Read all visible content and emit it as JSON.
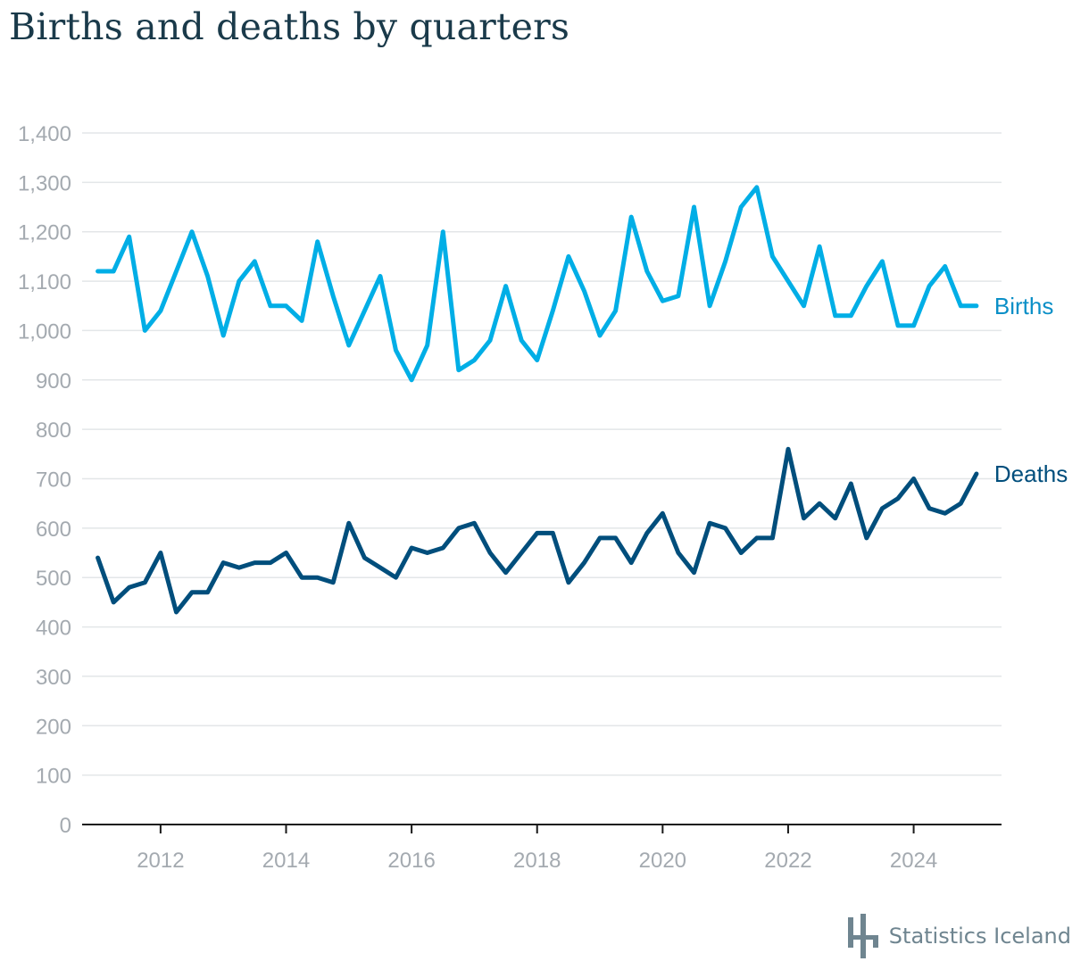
{
  "title": "Births and deaths by quarters",
  "footer": {
    "brand": "Statistics Iceland",
    "logo_icon": "statistics-iceland-logo-icon"
  },
  "colors": {
    "births": "#00aee6",
    "deaths": "#004e7c",
    "grid": "#e3e6e8",
    "axis": "#1a1a1a",
    "tick": "#a4aab0",
    "title": "#1a3a4a"
  },
  "chart_data": {
    "type": "line",
    "title": "Births and deaths by quarters",
    "xlabel": "",
    "ylabel": "",
    "ylim": [
      0,
      1400
    ],
    "yticks": [
      0,
      100,
      200,
      300,
      400,
      500,
      600,
      700,
      800,
      900,
      1000,
      1100,
      1200,
      1300,
      1400
    ],
    "ytick_labels": [
      "0",
      "100",
      "200",
      "300",
      "400",
      "500",
      "600",
      "700",
      "800",
      "900",
      "1,000",
      "1,100",
      "1,200",
      "1,300",
      "1,400"
    ],
    "xlim": [
      2010.75,
      2025.4
    ],
    "xticks": [
      2012,
      2014,
      2016,
      2018,
      2020,
      2022,
      2024
    ],
    "xtick_labels": [
      "2012",
      "2014",
      "2016",
      "2018",
      "2020",
      "2022",
      "2024"
    ],
    "x": [
      2011.0,
      2011.25,
      2011.5,
      2011.75,
      2012.0,
      2012.25,
      2012.5,
      2012.75,
      2013.0,
      2013.25,
      2013.5,
      2013.75,
      2014.0,
      2014.25,
      2014.5,
      2014.75,
      2015.0,
      2015.25,
      2015.5,
      2015.75,
      2016.0,
      2016.25,
      2016.5,
      2016.75,
      2017.0,
      2017.25,
      2017.5,
      2017.75,
      2018.0,
      2018.25,
      2018.5,
      2018.75,
      2019.0,
      2019.25,
      2019.5,
      2019.75,
      2020.0,
      2020.25,
      2020.5,
      2020.75,
      2021.0,
      2021.25,
      2021.5,
      2021.75,
      2022.0,
      2022.25,
      2022.5,
      2022.75,
      2023.0,
      2023.25,
      2023.5,
      2023.75,
      2024.0,
      2024.25,
      2024.5,
      2024.75,
      2025.0
    ],
    "grid": true,
    "legend": "inline labels at right end of lines",
    "series": [
      {
        "name": "Births",
        "values": [
          1120,
          1120,
          1190,
          1000,
          1040,
          1120,
          1200,
          1110,
          990,
          1100,
          1140,
          1050,
          1050,
          1020,
          1180,
          1070,
          970,
          1040,
          1110,
          960,
          900,
          970,
          1200,
          920,
          940,
          980,
          1090,
          980,
          940,
          1040,
          1150,
          1080,
          990,
          1040,
          1230,
          1120,
          1060,
          1070,
          1250,
          1050,
          1140,
          1250,
          1290,
          1150,
          1100,
          1050,
          1170,
          1030,
          1030,
          1090,
          1140,
          1010,
          1010,
          1090,
          1130,
          1050,
          1050
        ]
      },
      {
        "name": "Deaths",
        "values": [
          540,
          450,
          480,
          490,
          550,
          430,
          470,
          470,
          530,
          520,
          530,
          530,
          550,
          500,
          500,
          490,
          610,
          540,
          520,
          500,
          560,
          550,
          560,
          600,
          610,
          550,
          510,
          550,
          590,
          590,
          490,
          530,
          580,
          580,
          530,
          590,
          630,
          550,
          510,
          610,
          600,
          550,
          580,
          580,
          760,
          620,
          650,
          620,
          690,
          580,
          640,
          660,
          700,
          640,
          630,
          650,
          710
        ]
      }
    ]
  }
}
